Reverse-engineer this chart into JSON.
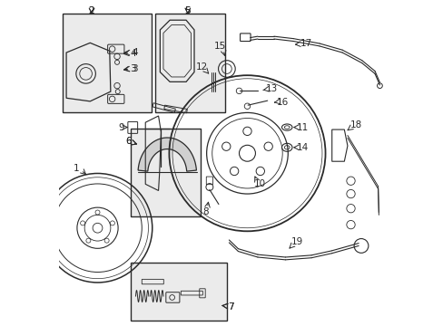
{
  "bg_color": "#ffffff",
  "line_color": "#2a2a2a",
  "box_color": "#ebebeb",
  "fig_width": 4.89,
  "fig_height": 3.6,
  "dpi": 100
}
